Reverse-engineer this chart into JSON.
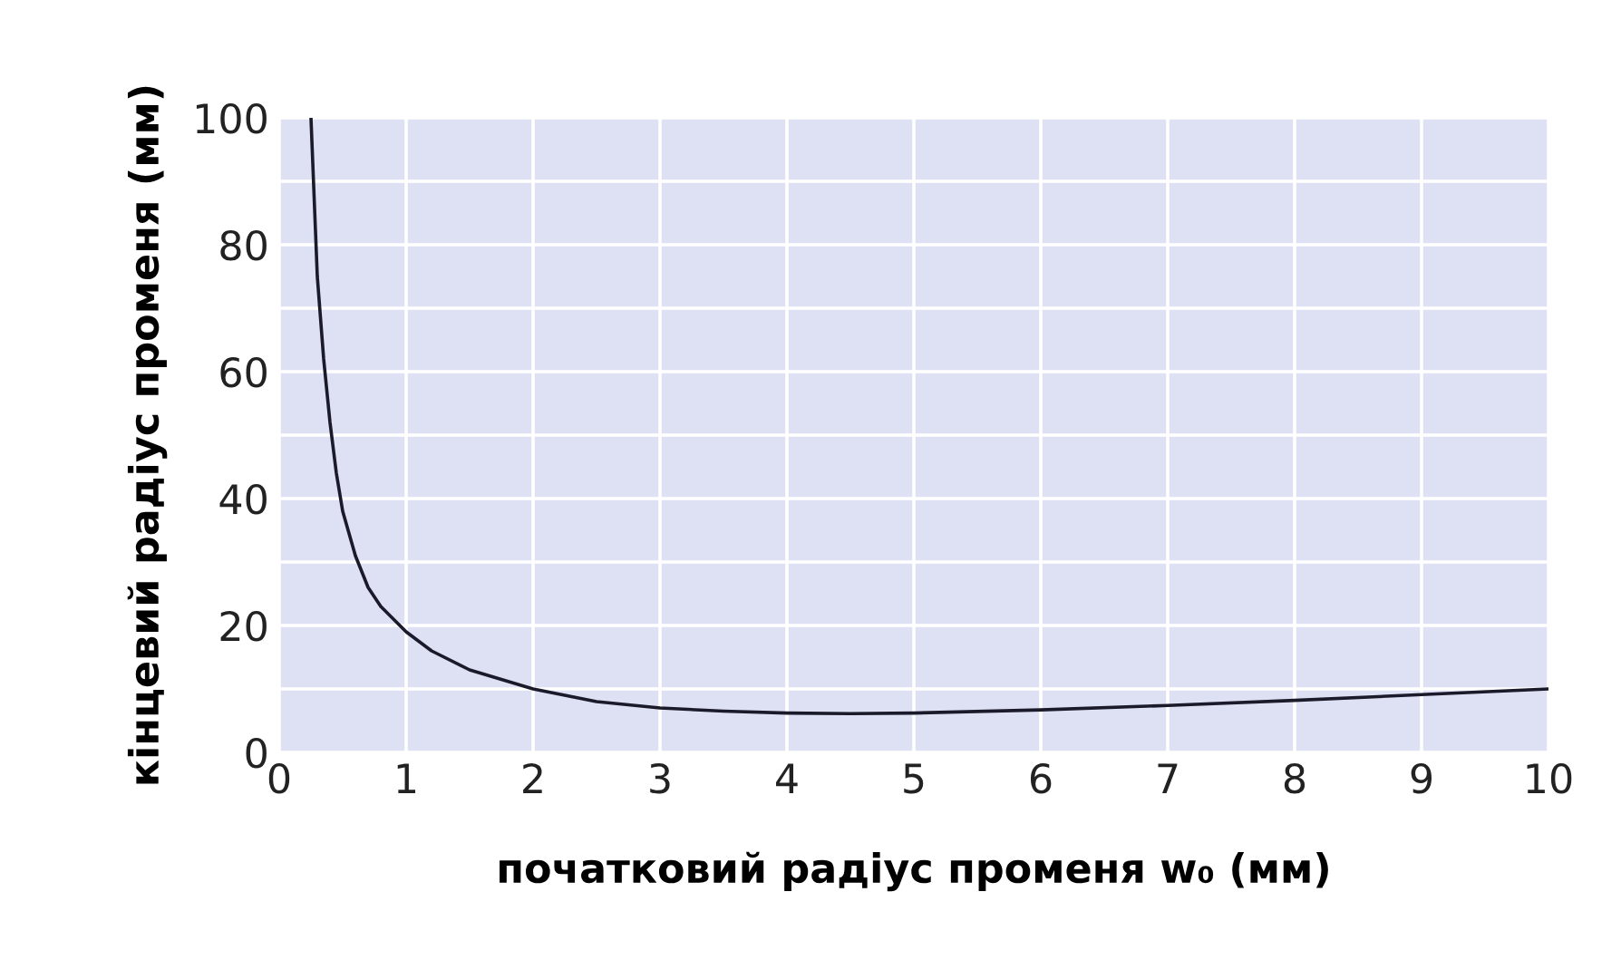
{
  "chart_data": {
    "type": "line",
    "xlabel": "початковий радіус променя w₀ (мм)",
    "ylabel": "кінцевий радіус променя (мм)",
    "x": [
      0.25,
      0.3,
      0.35,
      0.4,
      0.45,
      0.5,
      0.6,
      0.7,
      0.8,
      1,
      1.2,
      1.5,
      2,
      2.5,
      3,
      3.5,
      4,
      4.5,
      5,
      6,
      7,
      8,
      9,
      10
    ],
    "series": [
      {
        "color": "#1a1a2a",
        "values": [
          100,
          75,
          62,
          52,
          44,
          38,
          31,
          26,
          23,
          19,
          16,
          13,
          10,
          8,
          7,
          6.5,
          6.2,
          6.1,
          6.2,
          6.7,
          7.4,
          8.2,
          9.1,
          10
        ]
      }
    ],
    "xlim": [
      0,
      10
    ],
    "ylim": [
      0,
      100
    ],
    "xticks": [
      0,
      1,
      2,
      3,
      4,
      5,
      6,
      7,
      8,
      9,
      10
    ],
    "yticks": [
      0,
      {
        "value": 10,
        "label": null
      },
      20,
      {
        "value": 30,
        "label": null
      },
      40,
      {
        "value": 50,
        "label": null
      },
      60,
      {
        "value": 70,
        "label": null
      },
      80,
      {
        "value": 90,
        "label": null
      },
      100
    ],
    "grid": true,
    "line_style": "solid",
    "marker": "none"
  }
}
